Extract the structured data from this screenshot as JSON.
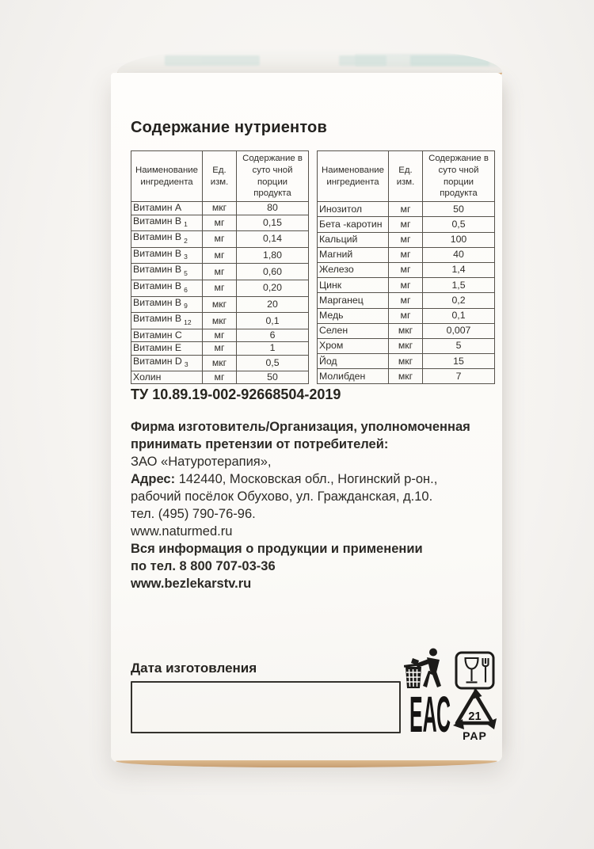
{
  "page_title": "Содержание нутриентов",
  "table_headers": {
    "col1": "Наименование ингредиента",
    "col2": "Ед. изм.",
    "col3": "Содержание в суто чной порции продукта"
  },
  "tables": {
    "left": {
      "rows": [
        {
          "name": "Витамин А",
          "sub": "",
          "unit": "мкг",
          "value": "80"
        },
        {
          "name": "Витамин В",
          "sub": "1",
          "unit": "мг",
          "value": "0,15"
        },
        {
          "name": "Витамин В",
          "sub": "2",
          "unit": "мг",
          "value": "0,14"
        },
        {
          "name": "Витамин В",
          "sub": "3",
          "unit": "мг",
          "value": "1,80"
        },
        {
          "name": "Витамин В",
          "sub": "5",
          "unit": "мг",
          "value": "0,60"
        },
        {
          "name": "Витамин В",
          "sub": "6",
          "unit": "мг",
          "value": "0,20"
        },
        {
          "name": "Витамин В",
          "sub": "9",
          "unit": "мкг",
          "value": "20"
        },
        {
          "name": "Витамин В",
          "sub": "12",
          "unit": "мкг",
          "value": "0,1"
        },
        {
          "name": "Витамин С",
          "sub": "",
          "unit": "мг",
          "value": "6"
        },
        {
          "name": "Витамин Е",
          "sub": "",
          "unit": "мг",
          "value": "1"
        },
        {
          "name": "Витамин D",
          "sub": "3",
          "unit": "мкг",
          "value": "0,5"
        },
        {
          "name": "Холин",
          "sub": "",
          "unit": "мг",
          "value": "50"
        }
      ]
    },
    "right": {
      "rows": [
        {
          "name": "Инозитол",
          "sub": "",
          "unit": "мг",
          "value": "50"
        },
        {
          "name": "Бета -каротин",
          "sub": "",
          "unit": "мг",
          "value": "0,5"
        },
        {
          "name": "Кальций",
          "sub": "",
          "unit": "мг",
          "value": "100"
        },
        {
          "name": "Магний",
          "sub": "",
          "unit": "мг",
          "value": "40"
        },
        {
          "name": "Железо",
          "sub": "",
          "unit": "мг",
          "value": "1,4"
        },
        {
          "name": "Цинк",
          "sub": "",
          "unit": "мг",
          "value": "1,5"
        },
        {
          "name": "Марганец",
          "sub": "",
          "unit": "мг",
          "value": "0,2"
        },
        {
          "name": "Медь",
          "sub": "",
          "unit": "мг",
          "value": "0,1"
        },
        {
          "name": "Селен",
          "sub": "",
          "unit": "мкг",
          "value": "0,007"
        },
        {
          "name": "Хром",
          "sub": "",
          "unit": "мкг",
          "value": "5"
        },
        {
          "name": "Йод",
          "sub": "",
          "unit": "мкг",
          "value": "15"
        },
        {
          "name": "Молибден",
          "sub": "",
          "unit": "мкг",
          "value": "7"
        }
      ]
    }
  },
  "tu_number": "ТУ 10.89.19-002-92668504-2019",
  "manufacturer": {
    "heading_line1": "Фирма изготовитель/Организация, уполномоченная",
    "heading_line2": "принимать претензии от потребителей:",
    "company": "ЗАО «Натуротерапия»,",
    "address_label": "Адрес:",
    "address_line1": "142440, Московская обл., Ногинский р-он.,",
    "address_line2": "рабочий посёлок Обухово, ул. Гражданская, д.10.",
    "phone": "тел. (495) 790-76-96.",
    "website": "www.naturmed.ru"
  },
  "info": {
    "line1": "Вся информация о продукции и применении",
    "line2": "по тел. 8 800 707-03-36",
    "website": "www.bezlekarstv.ru"
  },
  "date_label": "Дата изготовления",
  "marks": {
    "eac": "ЕАС",
    "recycle_code": "21",
    "recycle_material": "PAP"
  },
  "colors": {
    "cardboard_edge": "#d7ab7c",
    "box_face": "#fdfcfa",
    "ink": "#2c2a26",
    "table_border": "#57534c"
  }
}
